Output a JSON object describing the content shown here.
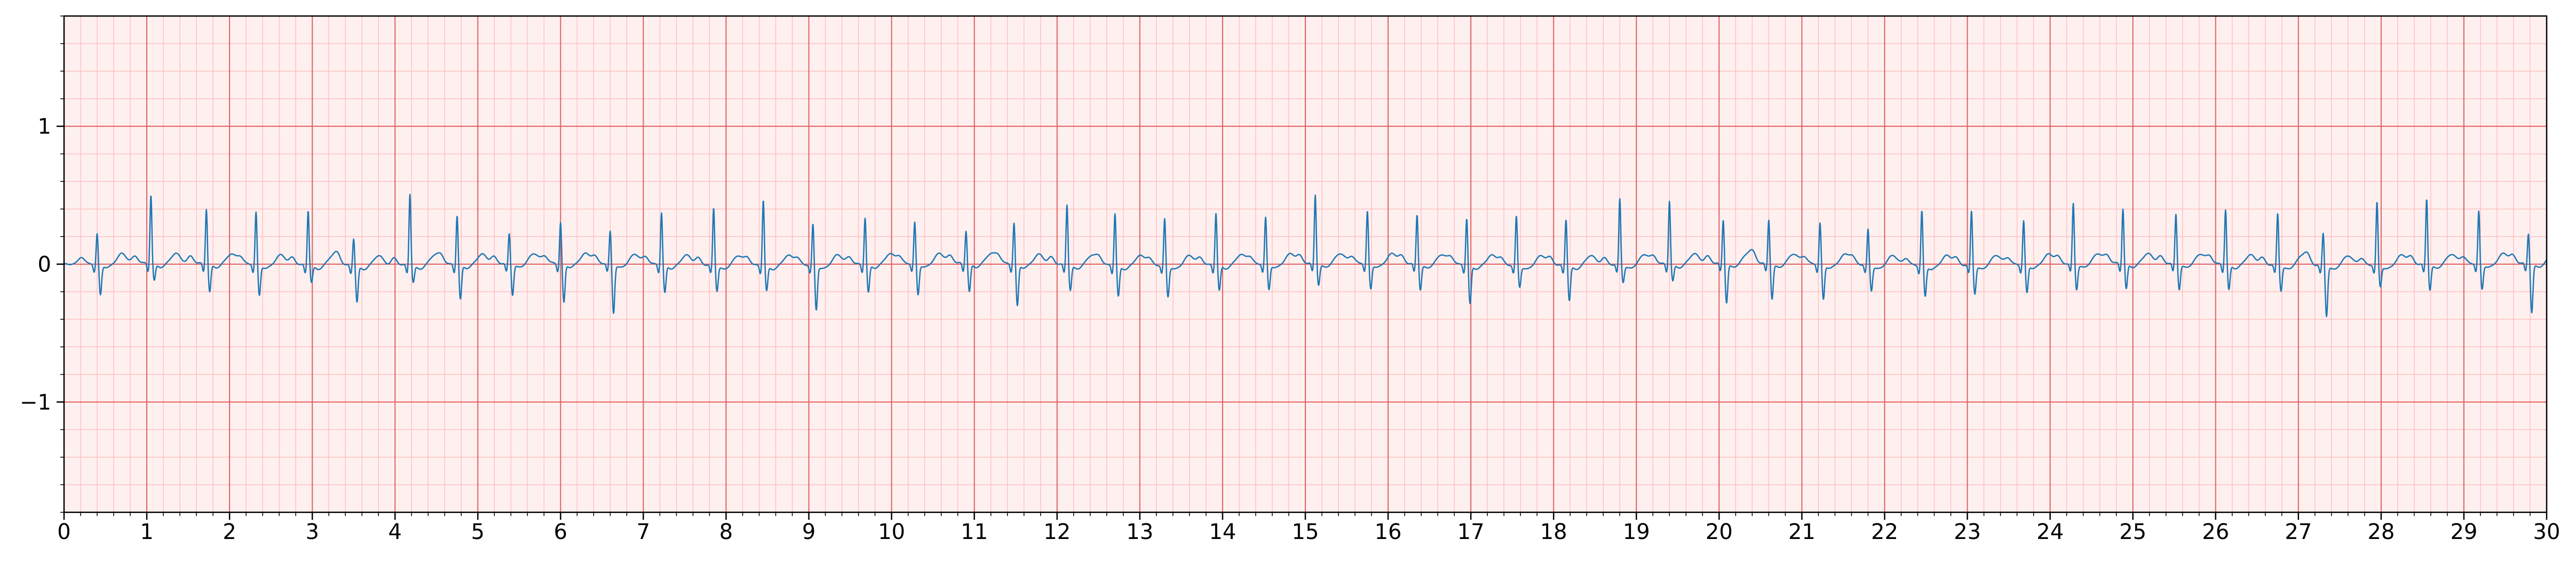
{
  "chart_data": {
    "type": "line",
    "title": "",
    "xlabel": "",
    "ylabel": "",
    "xlim": [
      0,
      30
    ],
    "ylim": [
      -1.8,
      1.8
    ],
    "x_ticks": [
      0,
      1,
      2,
      3,
      4,
      5,
      6,
      7,
      8,
      9,
      10,
      11,
      12,
      13,
      14,
      15,
      16,
      17,
      18,
      19,
      20,
      21,
      22,
      23,
      24,
      25,
      26,
      27,
      28,
      29,
      30
    ],
    "x_tick_labels": [
      "0",
      "1",
      "2",
      "3",
      "4",
      "5",
      "6",
      "7",
      "8",
      "9",
      "10",
      "11",
      "12",
      "13",
      "14",
      "15",
      "16",
      "17",
      "18",
      "19",
      "20",
      "21",
      "22",
      "23",
      "24",
      "25",
      "26",
      "27",
      "28",
      "29",
      "30"
    ],
    "y_ticks": [
      -1,
      0,
      1
    ],
    "y_tick_labels": [
      "−1",
      "0",
      "1"
    ],
    "grid": {
      "major": true,
      "minor": true,
      "major_color": "#e06060",
      "minor_color": "#ffc0c0",
      "x_minor_step": 0.2,
      "y_minor_step": 0.2
    },
    "background": "#fff0f0",
    "series": [
      {
        "color": "#1f77b4",
        "sample_rate_hz": 250,
        "beats": [
          {
            "t": 0.4,
            "r": 0.22,
            "s": -0.22
          },
          {
            "t": 1.05,
            "r": 0.5,
            "s": -0.12
          },
          {
            "t": 1.72,
            "r": 0.4,
            "s": -0.2
          },
          {
            "t": 2.32,
            "r": 0.38,
            "s": -0.22
          },
          {
            "t": 2.95,
            "r": 0.4,
            "s": -0.12
          },
          {
            "t": 3.5,
            "r": 0.2,
            "s": -0.26
          },
          {
            "t": 4.18,
            "r": 0.52,
            "s": -0.12
          },
          {
            "t": 4.75,
            "r": 0.36,
            "s": -0.25
          },
          {
            "t": 5.38,
            "r": 0.22,
            "s": -0.22
          },
          {
            "t": 6.0,
            "r": 0.3,
            "s": -0.28
          },
          {
            "t": 6.6,
            "r": 0.24,
            "s": -0.35
          },
          {
            "t": 7.22,
            "r": 0.38,
            "s": -0.2
          },
          {
            "t": 7.85,
            "r": 0.42,
            "s": -0.18
          },
          {
            "t": 8.45,
            "r": 0.48,
            "s": -0.18
          },
          {
            "t": 9.05,
            "r": 0.3,
            "s": -0.32
          },
          {
            "t": 9.68,
            "r": 0.34,
            "s": -0.2
          },
          {
            "t": 10.28,
            "r": 0.3,
            "s": -0.22
          },
          {
            "t": 10.9,
            "r": 0.24,
            "s": -0.2
          },
          {
            "t": 11.48,
            "r": 0.3,
            "s": -0.3
          },
          {
            "t": 12.12,
            "r": 0.44,
            "s": -0.18
          },
          {
            "t": 12.7,
            "r": 0.38,
            "s": -0.22
          },
          {
            "t": 13.3,
            "r": 0.34,
            "s": -0.22
          },
          {
            "t": 13.92,
            "r": 0.38,
            "s": -0.18
          },
          {
            "t": 14.52,
            "r": 0.34,
            "s": -0.18
          },
          {
            "t": 15.12,
            "r": 0.5,
            "s": -0.15
          },
          {
            "t": 15.75,
            "r": 0.38,
            "s": -0.18
          },
          {
            "t": 16.35,
            "r": 0.36,
            "s": -0.18
          },
          {
            "t": 16.95,
            "r": 0.34,
            "s": -0.28
          },
          {
            "t": 17.55,
            "r": 0.36,
            "s": -0.15
          },
          {
            "t": 18.15,
            "r": 0.34,
            "s": -0.25
          },
          {
            "t": 18.8,
            "r": 0.48,
            "s": -0.12
          },
          {
            "t": 19.4,
            "r": 0.46,
            "s": -0.12
          },
          {
            "t": 20.05,
            "r": 0.32,
            "s": -0.28
          },
          {
            "t": 20.6,
            "r": 0.32,
            "s": -0.25
          },
          {
            "t": 21.22,
            "r": 0.3,
            "s": -0.25
          },
          {
            "t": 21.8,
            "r": 0.26,
            "s": -0.18
          },
          {
            "t": 22.45,
            "r": 0.4,
            "s": -0.22
          },
          {
            "t": 23.05,
            "r": 0.4,
            "s": -0.2
          },
          {
            "t": 23.68,
            "r": 0.32,
            "s": -0.2
          },
          {
            "t": 24.28,
            "r": 0.44,
            "s": -0.18
          },
          {
            "t": 24.88,
            "r": 0.4,
            "s": -0.18
          },
          {
            "t": 25.52,
            "r": 0.36,
            "s": -0.18
          },
          {
            "t": 26.12,
            "r": 0.4,
            "s": -0.18
          },
          {
            "t": 26.75,
            "r": 0.38,
            "s": -0.18
          },
          {
            "t": 27.3,
            "r": 0.24,
            "s": -0.36
          },
          {
            "t": 27.95,
            "r": 0.46,
            "s": -0.15
          },
          {
            "t": 28.55,
            "r": 0.48,
            "s": -0.18
          },
          {
            "t": 29.18,
            "r": 0.38,
            "s": -0.18
          },
          {
            "t": 29.78,
            "r": 0.22,
            "s": -0.35
          }
        ]
      }
    ]
  }
}
